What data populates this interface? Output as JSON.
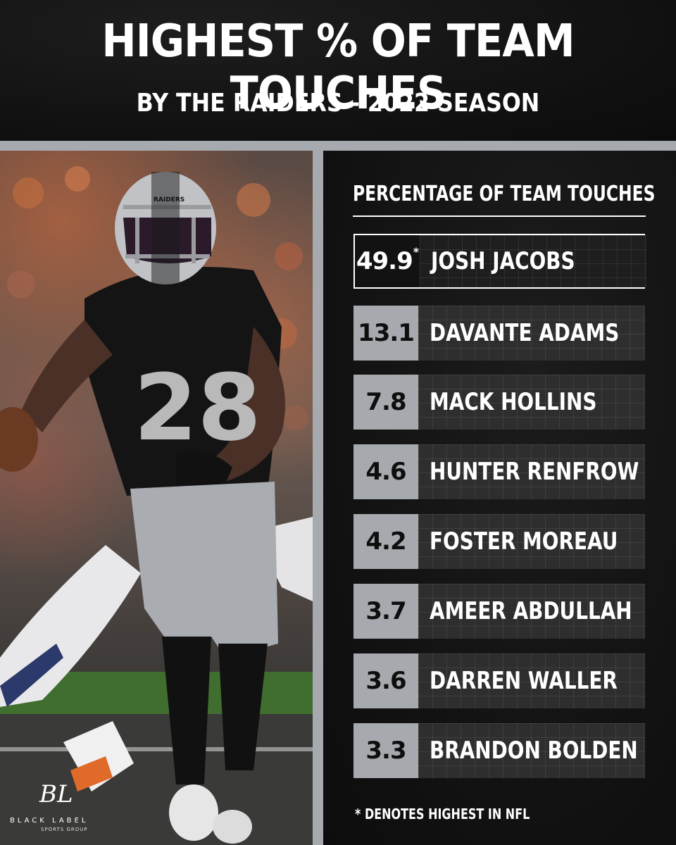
{
  "header": {
    "title": "HIGHEST % OF TEAM TOUCHES",
    "subtitle": "BY THE RAIDERS - 2022 SEASON"
  },
  "panel": {
    "title": "PERCENTAGE OF TEAM TOUCHES",
    "rows": [
      {
        "value": "49.9",
        "marker": "*",
        "name": "JOSH JACOBS"
      },
      {
        "value": "13.1",
        "name": "DAVANTE ADAMS"
      },
      {
        "value": "7.8",
        "name": "MACK HOLLINS"
      },
      {
        "value": "4.6",
        "name": "HUNTER RENFROW"
      },
      {
        "value": "4.2",
        "name": "FOSTER MOREAU"
      },
      {
        "value": "3.7",
        "name": "AMEER ABDULLAH"
      },
      {
        "value": "3.6",
        "name": "DARREN WALLER"
      },
      {
        "value": "3.3",
        "name": "BRANDON BOLDEN"
      }
    ],
    "footnote": "* DENOTES HIGHEST IN NFL"
  },
  "photo": {
    "jersey_number": "28",
    "helmet_text": "RAIDERS"
  },
  "logo": {
    "mark": "BL",
    "name": "BLACK LABEL",
    "sub": "SPORTS GROUP"
  },
  "colors": {
    "background": "#101010",
    "frame": "#a6a9ad",
    "text": "#ffffff",
    "row_name_bg": "#2e2e2e"
  }
}
